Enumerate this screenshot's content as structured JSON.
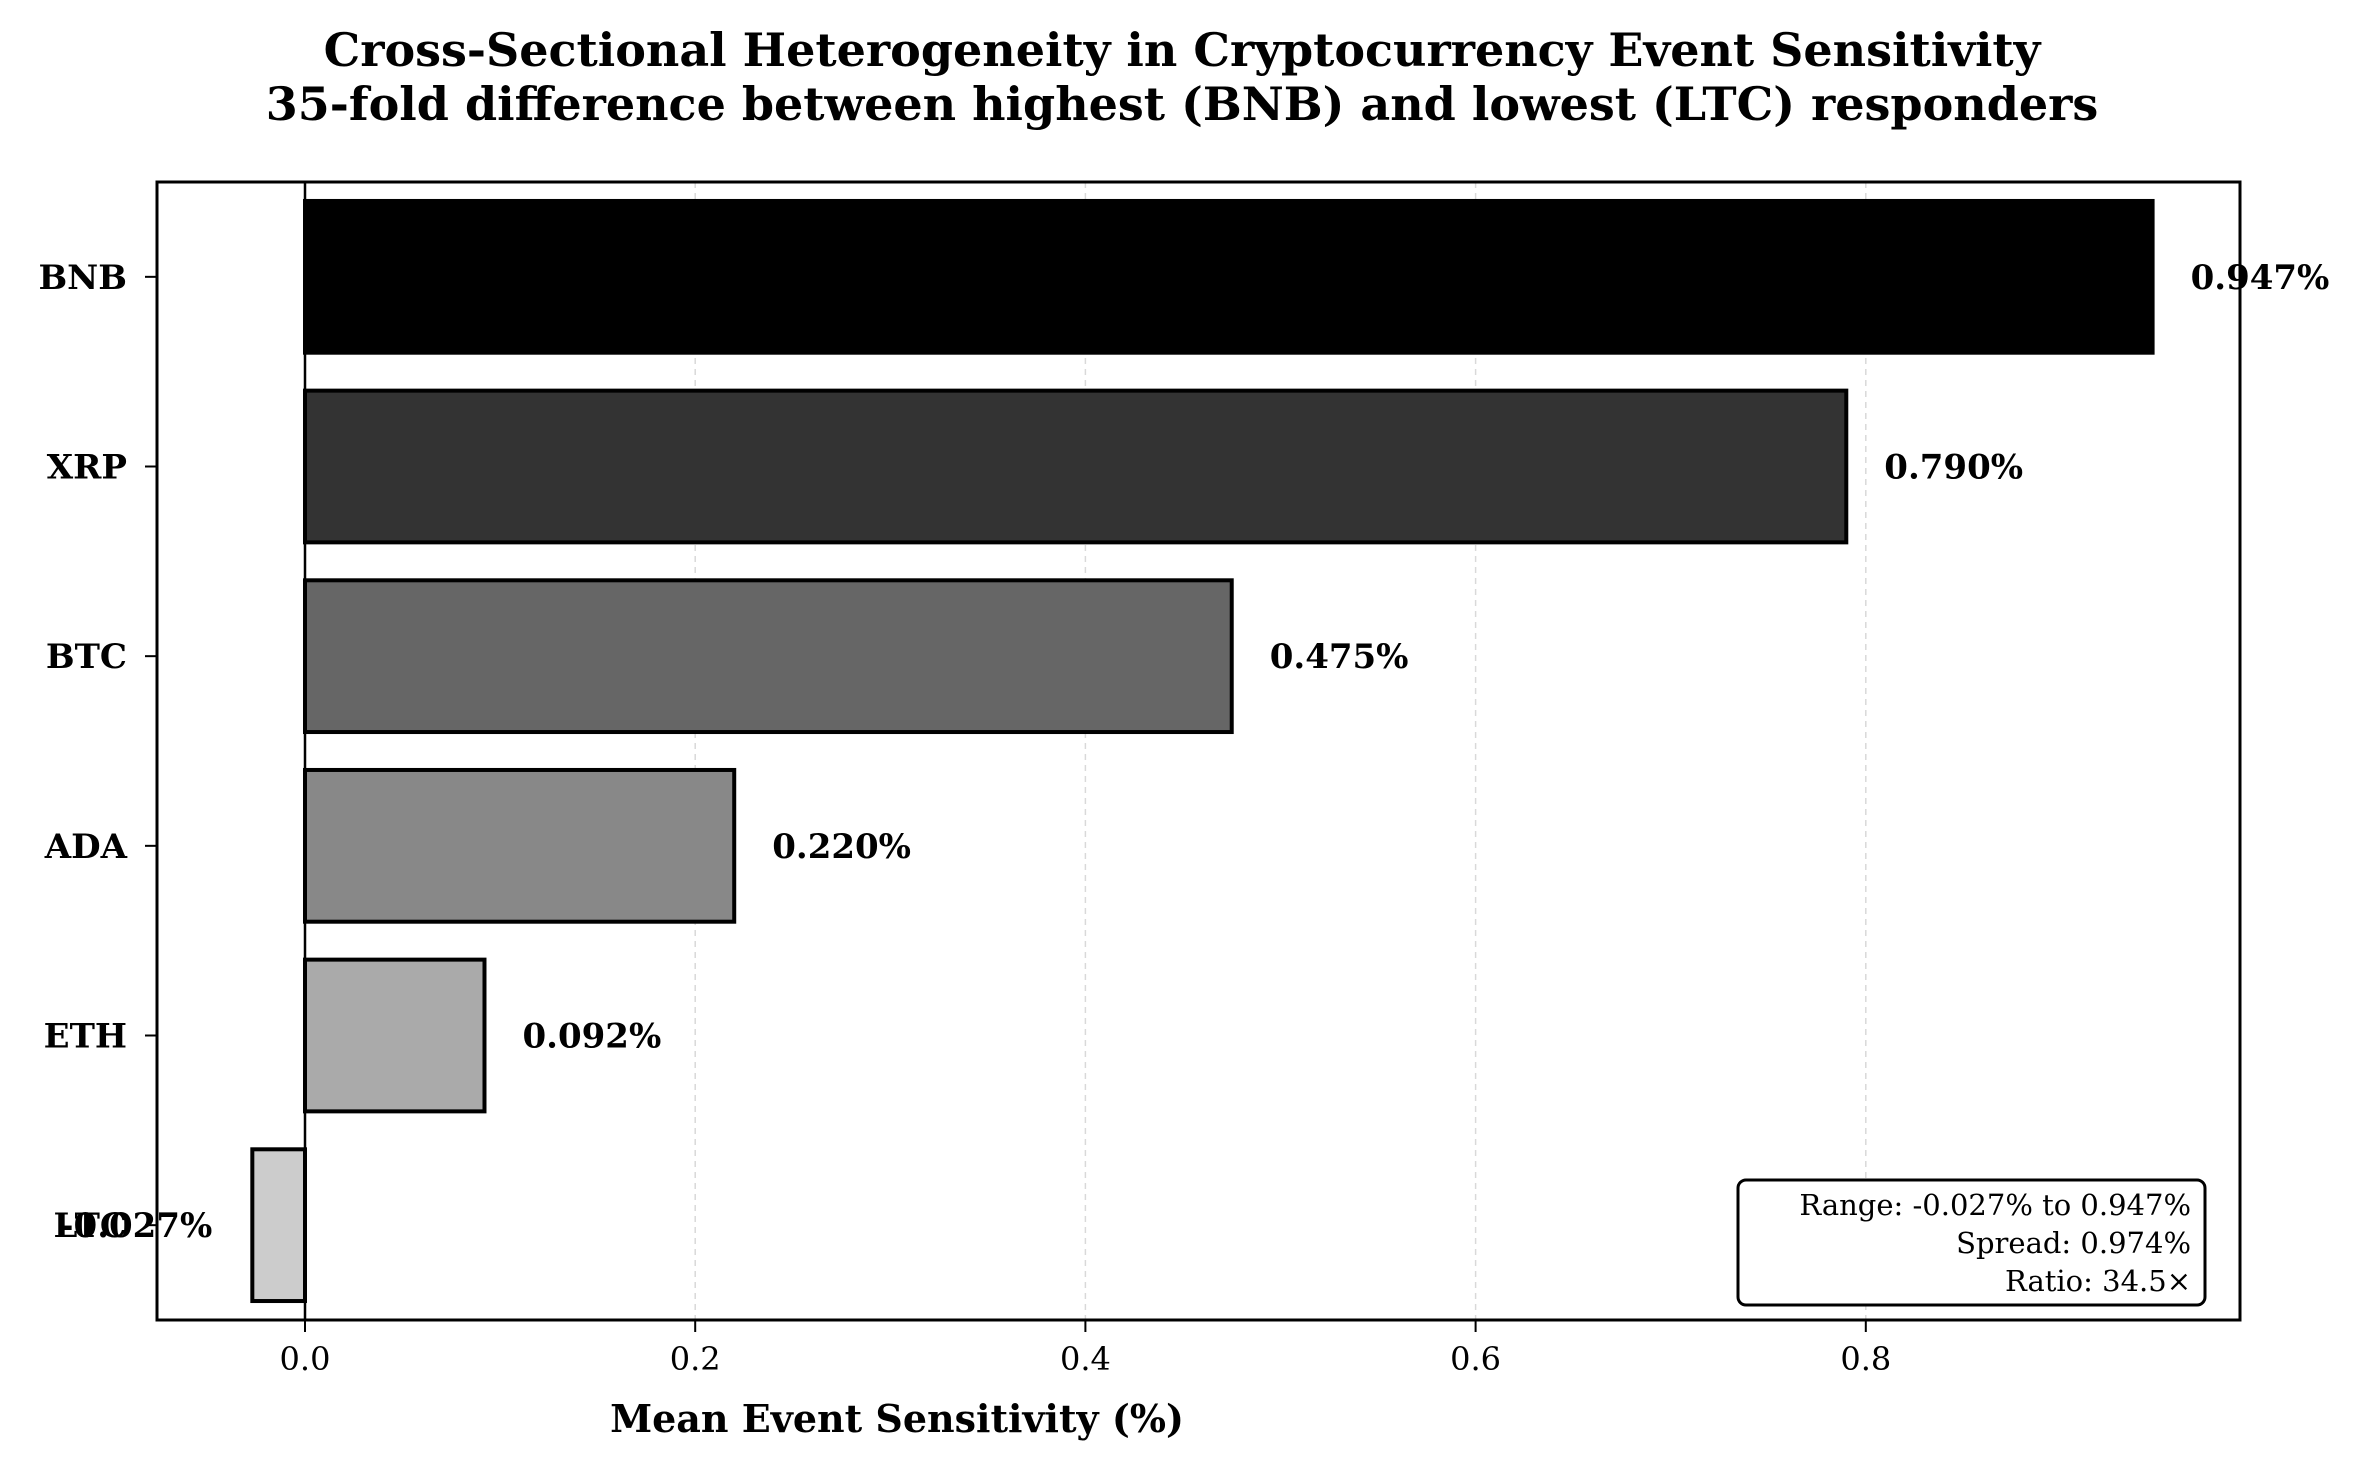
{
  "chart_data": {
    "type": "bar",
    "orientation": "horizontal",
    "title": "Cross-Sectional Heterogeneity in Cryptocurrency Event Sensitivity",
    "subtitle": "35-fold difference between highest (BNB) and lowest (LTC) responders",
    "xlabel": "Mean Event Sensitivity (%)",
    "ylabel": "",
    "categories": [
      "BNB",
      "XRP",
      "BTC",
      "ADA",
      "ETH",
      "LTC"
    ],
    "values": [
      0.947,
      0.79,
      0.475,
      0.22,
      0.092,
      -0.027
    ],
    "value_labels": [
      "0.947%",
      "0.790%",
      "0.475%",
      "0.220%",
      "0.092%",
      "-0.027%"
    ],
    "colors": [
      "#000000",
      "#333333",
      "#666666",
      "#888888",
      "#aaaaaa",
      "#cccccc"
    ],
    "xlim": [
      -0.076,
      0.9944
    ],
    "xticks": [
      0.0,
      0.2,
      0.4,
      0.6,
      0.8
    ],
    "xtick_labels": [
      "0.0",
      "0.2",
      "0.4",
      "0.6",
      "0.8"
    ],
    "grid": "x-dashed",
    "stats_box": {
      "position": "bottom-right",
      "lines": [
        "Range: -0.027% to 0.947%",
        "Spread: 0.974%",
        "Ratio: 34.5×"
      ]
    }
  }
}
